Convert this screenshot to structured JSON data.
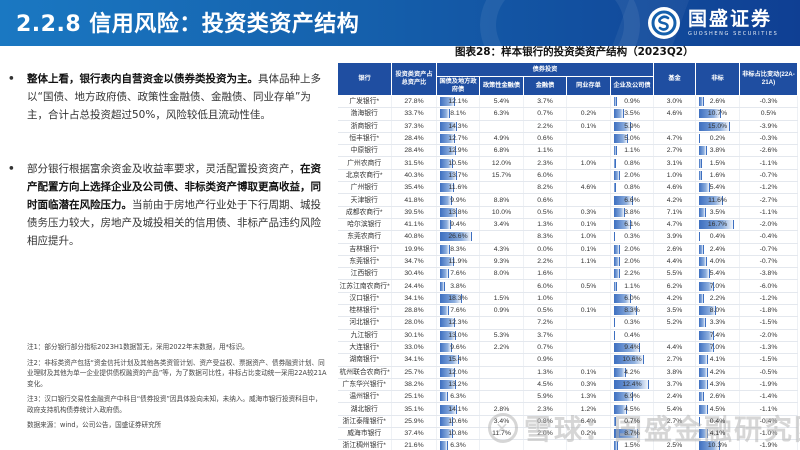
{
  "header": {
    "title": "2.2.8 信用风险：投资类资产结构",
    "logo_cn": "国盛证券",
    "logo_en": "GUOSHENG SECURITIES",
    "logo_icon": "guosheng-logo-icon"
  },
  "left": {
    "bullets": [
      {
        "strong": "整体上看，银行表内自营资金以债券类投资为主。",
        "text": "具体品种上多以“国债、地方政府债、政策性金融债、金融债、同业存单”为主，合计占总投资超过50%，风险较低且流动性佳。"
      },
      {
        "lead": "部分银行根据富余资金及收益率要求，灵活配置投资资产，",
        "strong": "在资产配置方向上选择企业及公司债、非标类资产博取更高收益，同时面临潜在风险压力。",
        "text": "当前由于房地产行业处于下行周期、城投债务压力较大，房地产及城投相关的信用债、非标产品违约风险相应提升。"
      }
    ],
    "bullet_glyph": "•",
    "notes": [
      "注1：部分银行部分指标2023H1数据暂无，采用2022年末数据，用*标识。",
      "注2：非标类资产包括“资金信托计划及其他各类资管计划、资产受益权、票据资产、债券融资计划、同业理财及其他为单一企业提供债权融资的产品”等，为了数据可比性，非标占比变动统一采用22A较21A变化。",
      "注3：汉口银行交易性金融资产中科目“债券投资”因具体投向未知，未纳入。威海市银行投资科目中，政府支持机构债券统计入政府债。",
      "数据来源：wind，公司公告，国盛证券研究所"
    ]
  },
  "table": {
    "title": "图表28：样本银行的投资类资产结构（2023Q2）",
    "headers": {
      "bank": "银行",
      "invest_ratio": "投资类资产占总资产比",
      "bond_group": "债券投资",
      "gov": "国债及地方政府债",
      "policy": "政策性金融债",
      "fin": "金融债",
      "ncd": "同业存单",
      "corp": "企业及公司债",
      "fund": "基金",
      "nonstd": "非标",
      "nonstd_chg": "非标占比变动(22A-21A)"
    },
    "rows": [
      {
        "bank": "广发银行*",
        "ratio": "27.8%",
        "gov": "12.1%",
        "policy": "5.4%",
        "fin": "3.7%",
        "ncd": "",
        "corp": "0.9%",
        "fund": "3.0%",
        "nonstd": "2.6%",
        "chg": "-0.3%"
      },
      {
        "bank": "渤海银行",
        "ratio": "33.7%",
        "gov": "8.1%",
        "policy": "6.3%",
        "fin": "0.7%",
        "ncd": "0.2%",
        "corp": "3.5%",
        "fund": "4.6%",
        "nonstd": "10.7%",
        "chg": "0.5%"
      },
      {
        "bank": "浙商银行",
        "ratio": "37.3%",
        "gov": "14.3%",
        "policy": "",
        "fin": "2.2%",
        "ncd": "0.1%",
        "corp": "5.9%",
        "fund": "",
        "nonstd": "15.0%",
        "chg": "-3.9%"
      },
      {
        "bank": "恒丰银行*",
        "ratio": "28.4%",
        "gov": "12.7%",
        "policy": "4.9%",
        "fin": "0.6%",
        "ncd": "",
        "corp": "5.0%",
        "fund": "4.7%",
        "nonstd": "0.2%",
        "chg": "-0.3%"
      },
      {
        "bank": "中原银行",
        "ratio": "28.4%",
        "gov": "12.9%",
        "policy": "6.8%",
        "fin": "1.1%",
        "ncd": "",
        "corp": "1.1%",
        "fund": "2.7%",
        "nonstd": "3.8%",
        "chg": "-2.6%"
      },
      {
        "bank": "广州农商行",
        "ratio": "31.5%",
        "gov": "10.5%",
        "policy": "12.0%",
        "fin": "2.3%",
        "ncd": "1.0%",
        "corp": "0.8%",
        "fund": "3.1%",
        "nonstd": "1.5%",
        "chg": "-1.1%"
      },
      {
        "bank": "北京农商行*",
        "ratio": "40.3%",
        "gov": "13.7%",
        "policy": "15.7%",
        "fin": "6.0%",
        "ncd": "",
        "corp": "2.0%",
        "fund": "1.0%",
        "nonstd": "1.6%",
        "chg": "-0.7%"
      },
      {
        "bank": "广州银行",
        "ratio": "35.4%",
        "gov": "11.6%",
        "policy": "",
        "fin": "8.2%",
        "ncd": "4.6%",
        "corp": "0.8%",
        "fund": "4.6%",
        "nonstd": "5.4%",
        "chg": "-1.2%"
      },
      {
        "bank": "天津银行",
        "ratio": "41.8%",
        "gov": "9.9%",
        "policy": "8.8%",
        "fin": "0.6%",
        "ncd": "",
        "corp": "6.6%",
        "fund": "4.2%",
        "nonstd": "11.6%",
        "chg": "-2.7%"
      },
      {
        "bank": "成都农商行*",
        "ratio": "39.5%",
        "gov": "13.8%",
        "policy": "10.0%",
        "fin": "0.5%",
        "ncd": "0.3%",
        "corp": "3.8%",
        "fund": "7.1%",
        "nonstd": "3.5%",
        "chg": "-1.1%"
      },
      {
        "bank": "哈尔滨银行",
        "ratio": "41.1%",
        "gov": "9.4%",
        "policy": "3.4%",
        "fin": "1.3%",
        "ncd": "0.1%",
        "corp": "6.1%",
        "fund": "4.7%",
        "nonstd": "16.7%",
        "chg": "-2.0%"
      },
      {
        "bank": "东莞农商行",
        "ratio": "40.8%",
        "gov": "26.6%",
        "policy": "",
        "fin": "8.3%",
        "ncd": "1.0%",
        "corp": "0.3%",
        "fund": "3.9%",
        "nonstd": "0.4%",
        "chg": "-0.4%"
      },
      {
        "bank": "吉林银行*",
        "ratio": "19.9%",
        "gov": "8.3%",
        "policy": "4.3%",
        "fin": "0.0%",
        "ncd": "0.1%",
        "corp": "2.0%",
        "fund": "2.6%",
        "nonstd": "2.4%",
        "chg": "-0.7%"
      },
      {
        "bank": "东莞银行*",
        "ratio": "34.7%",
        "gov": "11.9%",
        "policy": "9.3%",
        "fin": "2.2%",
        "ncd": "1.1%",
        "corp": "2.0%",
        "fund": "4.4%",
        "nonstd": "4.0%",
        "chg": "-0.7%"
      },
      {
        "bank": "江西银行",
        "ratio": "30.4%",
        "gov": "7.6%",
        "policy": "8.0%",
        "fin": "1.6%",
        "ncd": "",
        "corp": "2.2%",
        "fund": "5.5%",
        "nonstd": "5.4%",
        "chg": "-3.8%"
      },
      {
        "bank": "江苏江南农商行*",
        "ratio": "24.4%",
        "gov": "3.8%",
        "policy": "",
        "fin": "6.0%",
        "ncd": "0.5%",
        "corp": "1.1%",
        "fund": "6.2%",
        "nonstd": "7.0%",
        "chg": "-6.0%"
      },
      {
        "bank": "汉口银行*",
        "ratio": "34.1%",
        "gov": "18.3%",
        "policy": "1.5%",
        "fin": "1.0%",
        "ncd": "",
        "corp": "6.0%",
        "fund": "4.2%",
        "nonstd": "2.2%",
        "chg": "-1.2%"
      },
      {
        "bank": "桂林银行*",
        "ratio": "28.8%",
        "gov": "7.6%",
        "policy": "0.9%",
        "fin": "0.5%",
        "ncd": "0.1%",
        "corp": "8.3%",
        "fund": "3.5%",
        "nonstd": "8.0%",
        "chg": "-1.8%"
      },
      {
        "bank": "河北银行*",
        "ratio": "28.0%",
        "gov": "12.3%",
        "policy": "",
        "fin": "7.2%",
        "ncd": "",
        "corp": "0.3%",
        "fund": "5.2%",
        "nonstd": "3.3%",
        "chg": "-1.5%"
      },
      {
        "bank": "九江银行",
        "ratio": "30.1%",
        "gov": "13.0%",
        "policy": "5.3%",
        "fin": "3.7%",
        "ncd": "",
        "corp": "0.4%",
        "fund": "",
        "nonstd": "7.4%",
        "chg": "-2.0%"
      },
      {
        "bank": "大连银行*",
        "ratio": "33.0%",
        "gov": "9.6%",
        "policy": "2.2%",
        "fin": "0.7%",
        "ncd": "",
        "corp": "9.4%",
        "fund": "4.4%",
        "nonstd": "7.0%",
        "chg": "-1.3%"
      },
      {
        "bank": "湖南银行*",
        "ratio": "34.1%",
        "gov": "15.4%",
        "policy": "",
        "fin": "0.9%",
        "ncd": "",
        "corp": "10.6%",
        "fund": "2.7%",
        "nonstd": "4.1%",
        "chg": "-1.5%"
      },
      {
        "bank": "杭州联合农商行*",
        "ratio": "25.7%",
        "gov": "12.0%",
        "policy": "",
        "fin": "1.3%",
        "ncd": "0.1%",
        "corp": "4.2%",
        "fund": "3.8%",
        "nonstd": "4.2%",
        "chg": "-0.5%"
      },
      {
        "bank": "广东华兴银行*",
        "ratio": "38.2%",
        "gov": "13.2%",
        "policy": "",
        "fin": "4.5%",
        "ncd": "0.3%",
        "corp": "12.4%",
        "fund": "3.7%",
        "nonstd": "4.3%",
        "chg": "-1.9%"
      },
      {
        "bank": "温州银行*",
        "ratio": "25.1%",
        "gov": "6.3%",
        "policy": "",
        "fin": "5.9%",
        "ncd": "1.3%",
        "corp": "6.9%",
        "fund": "2.4%",
        "nonstd": "2.6%",
        "chg": "-1.4%"
      },
      {
        "bank": "湖北银行",
        "ratio": "35.1%",
        "gov": "14.1%",
        "policy": "2.8%",
        "fin": "2.3%",
        "ncd": "1.2%",
        "corp": "4.5%",
        "fund": "5.4%",
        "nonstd": "4.5%",
        "chg": "-1.1%"
      },
      {
        "bank": "浙江泰隆银行*",
        "ratio": "25.9%",
        "gov": "10.6%",
        "policy": "3.4%",
        "fin": "0.8%",
        "ncd": "6.4%",
        "corp": "0.7%",
        "fund": "2.7%",
        "nonstd": "0.4%",
        "chg": "-0.4%"
      },
      {
        "bank": "威海市银行",
        "ratio": "37.4%",
        "gov": "10.8%",
        "policy": "11.7%",
        "fin": "2.0%",
        "ncd": "0.2%",
        "corp": "8.7%",
        "fund": "",
        "nonstd": "4.1%",
        "chg": "-1.0%"
      },
      {
        "bank": "浙江稠州银行*",
        "ratio": "21.6%",
        "gov": "6.3%",
        "policy": "",
        "fin": "",
        "ncd": "",
        "corp": "1.5%",
        "fund": "2.5%",
        "nonstd": "10.3%",
        "chg": "-1.9%"
      },
      {
        "bank": "张家口银行*",
        "ratio": "34.3%",
        "gov": "15.2%",
        "policy": "0.3%",
        "fin": "1.3%",
        "ncd": "6.2%",
        "corp": "0.0%",
        "fund": "3.7%",
        "nonstd": "8.1%",
        "chg": "-0.5%"
      }
    ]
  },
  "watermark": {
    "text": "雪球：国盛金融研究团队",
    "icon": "xueqiu-icon"
  },
  "colors": {
    "header_start": "#1a78c2",
    "header_end": "#0f3f93",
    "table_header": "#1f4ea1",
    "bar": "#3d6fc0"
  }
}
